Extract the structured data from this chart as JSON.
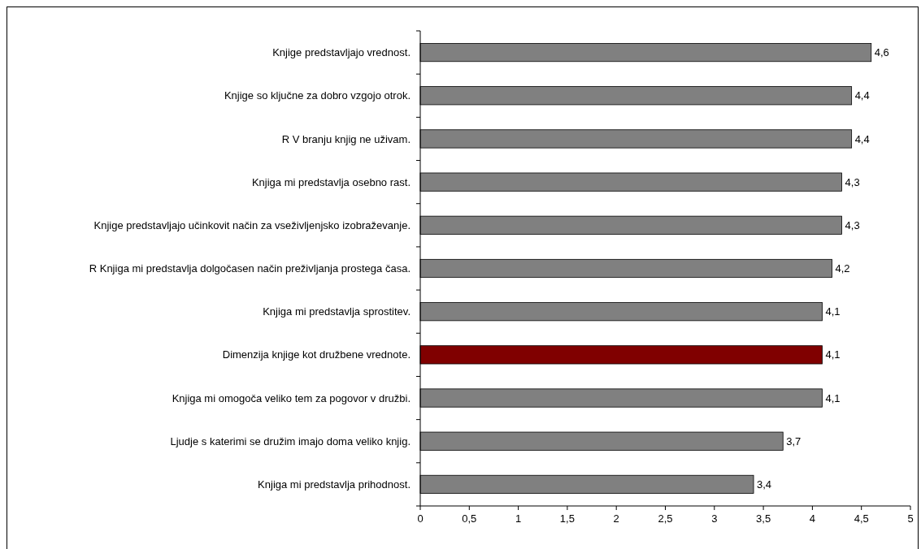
{
  "chart_data": {
    "type": "bar",
    "orientation": "horizontal",
    "categories": [
      "Knjige predstavljajo vrednost.",
      "Knjige so ključne za dobro vzgojo otrok.",
      "R V branju knjig ne uživam.",
      "Knjiga mi predstavlja osebno rast.",
      "Knjige predstavljajo učinkovit način za vseživljenjsko izobraževanje.",
      "R Knjiga mi predstavlja dolgočasen način preživljanja prostega časa.",
      "Knjiga mi predstavlja sprostitev.",
      "Dimenzija knjige kot družbene vrednote.",
      "Knjiga mi omogoča veliko tem za pogovor v družbi.",
      "Ljudje s katerimi se družim imajo doma veliko knjig.",
      "Knjiga mi predstavlja prihodnost."
    ],
    "values": [
      4.6,
      4.4,
      4.4,
      4.3,
      4.3,
      4.2,
      4.1,
      4.1,
      4.1,
      3.7,
      3.4
    ],
    "value_labels": [
      "4,6",
      "4,4",
      "4,4",
      "4,3",
      "4,3",
      "4,2",
      "4,1",
      "4,1",
      "4,1",
      "3,7",
      "3,4"
    ],
    "colors": [
      "#808080",
      "#808080",
      "#808080",
      "#808080",
      "#808080",
      "#808080",
      "#808080",
      "#800000",
      "#808080",
      "#808080",
      "#808080"
    ],
    "xlim": [
      0,
      5
    ],
    "xticks": [
      0,
      {
        "value": 0.5,
        "label": "0,5"
      },
      1,
      {
        "value": 1.5,
        "label": "1,5"
      },
      2,
      {
        "value": 2.5,
        "label": "2,5"
      },
      3,
      {
        "value": 3.5,
        "label": "3,5"
      },
      4,
      {
        "value": 4.5,
        "label": "4,5"
      },
      5
    ],
    "grid": false
  }
}
